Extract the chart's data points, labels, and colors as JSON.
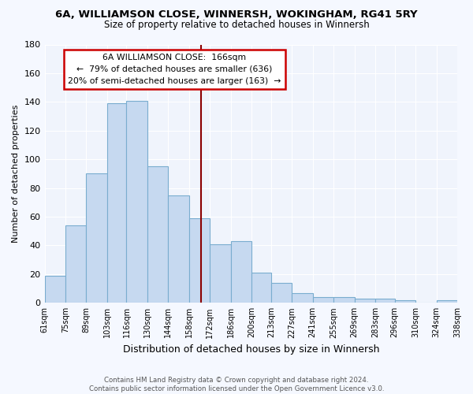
{
  "title1": "6A, WILLIAMSON CLOSE, WINNERSH, WOKINGHAM, RG41 5RY",
  "title2": "Size of property relative to detached houses in Winnersh",
  "xlabel": "Distribution of detached houses by size in Winnersh",
  "ylabel": "Number of detached properties",
  "bar_edges": [
    61,
    75,
    89,
    103,
    116,
    130,
    144,
    158,
    172,
    186,
    200,
    213,
    227,
    241,
    255,
    269,
    283,
    296,
    310,
    324,
    338
  ],
  "bar_heights": [
    19,
    54,
    90,
    139,
    141,
    95,
    75,
    59,
    41,
    43,
    21,
    14,
    7,
    4,
    4,
    3,
    3,
    2,
    0,
    2
  ],
  "bar_color": "#c6d9f0",
  "bar_edge_color": "#7aadcf",
  "property_size": 166,
  "annotation_line1": "6A WILLIAMSON CLOSE:  166sqm",
  "annotation_line2": "←  79% of detached houses are smaller (636)",
  "annotation_line3": "20% of semi-detached houses are larger (163)  →",
  "annotation_box_color": "#ffffff",
  "annotation_border_color": "#cc0000",
  "vline_color": "#8b0000",
  "ylim": [
    0,
    180
  ],
  "yticks": [
    0,
    20,
    40,
    60,
    80,
    100,
    120,
    140,
    160,
    180
  ],
  "tick_labels": [
    "61sqm",
    "75sqm",
    "89sqm",
    "103sqm",
    "116sqm",
    "130sqm",
    "144sqm",
    "158sqm",
    "172sqm",
    "186sqm",
    "200sqm",
    "213sqm",
    "227sqm",
    "241sqm",
    "255sqm",
    "269sqm",
    "283sqm",
    "296sqm",
    "310sqm",
    "324sqm",
    "338sqm"
  ],
  "footnote": "Contains HM Land Registry data © Crown copyright and database right 2024.\nContains public sector information licensed under the Open Government Licence v3.0.",
  "bg_color": "#f5f8ff",
  "plot_bg_color": "#f0f4fc",
  "grid_color": "#ffffff",
  "title1_fontsize": 9.5,
  "title2_fontsize": 8.5
}
